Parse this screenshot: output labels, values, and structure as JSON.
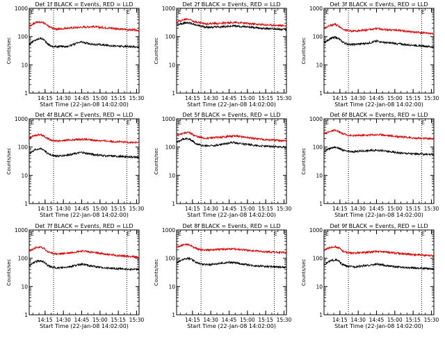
{
  "chart_data": [
    {
      "type": "line",
      "title": "Det 1f BLACK = Events, RED = LLD",
      "xlabel": "Start Time (22-Jan-08 14:02:00)",
      "ylabel": "Counts/sec",
      "xticks": [
        "14:15",
        "14:30",
        "14:45",
        "15:00",
        "15:15",
        "15:30"
      ],
      "yticks": [
        "1",
        "10",
        "100",
        "1000"
      ],
      "ylim": [
        1,
        1000
      ],
      "yscale": "log",
      "markers": [
        "E",
        "E"
      ],
      "series": [
        {
          "color": "#000000",
          "x": [
            0,
            5,
            9,
            12,
            15,
            19,
            23,
            27,
            30,
            35,
            39,
            43,
            47,
            52,
            57,
            62,
            67,
            72,
            77,
            82,
            87,
            90
          ],
          "y": [
            55,
            75,
            88,
            80,
            55,
            45,
            44,
            46,
            44,
            50,
            58,
            65,
            58,
            53,
            52,
            50,
            48,
            46,
            45,
            44,
            43,
            42
          ]
        },
        {
          "color": "#dd0000",
          "x": [
            0,
            5,
            9,
            12,
            15,
            19,
            23,
            27,
            30,
            35,
            39,
            43,
            47,
            52,
            57,
            62,
            67,
            72,
            77,
            82,
            87,
            90
          ],
          "y": [
            240,
            310,
            340,
            300,
            240,
            200,
            185,
            190,
            200,
            205,
            210,
            215,
            220,
            225,
            215,
            205,
            200,
            190,
            180,
            175,
            170,
            165
          ]
        }
      ]
    },
    {
      "type": "line",
      "title": "Det 2f BLACK = Events, RED = LLD",
      "xlabel": "Start Time (22-Jan-08 14:02:00)",
      "ylabel": "Counts/sec",
      "xticks": [
        "14:15",
        "14:30",
        "14:45",
        "15:00",
        "15:15",
        "15:30"
      ],
      "yticks": [
        "1",
        "10",
        "100",
        "1000"
      ],
      "ylim": [
        1,
        1000
      ],
      "yscale": "log",
      "markers": [
        "E",
        "E"
      ],
      "series": [
        {
          "color": "#000000",
          "x": [
            0,
            5,
            9,
            12,
            15,
            19,
            23,
            27,
            30,
            35,
            39,
            43,
            47,
            52,
            57,
            62,
            67,
            72,
            77,
            82,
            87,
            90
          ],
          "y": [
            250,
            290,
            310,
            290,
            260,
            240,
            220,
            215,
            220,
            220,
            225,
            230,
            240,
            230,
            220,
            210,
            200,
            195,
            190,
            185,
            180,
            175
          ]
        },
        {
          "color": "#dd0000",
          "x": [
            0,
            5,
            9,
            12,
            15,
            19,
            23,
            27,
            30,
            35,
            39,
            43,
            47,
            52,
            57,
            62,
            67,
            72,
            77,
            82,
            87,
            90
          ],
          "y": [
            330,
            390,
            420,
            390,
            340,
            310,
            290,
            285,
            290,
            295,
            300,
            305,
            320,
            310,
            295,
            280,
            270,
            260,
            255,
            250,
            245,
            240
          ]
        }
      ]
    },
    {
      "type": "line",
      "title": "Det 3f BLACK = Events, RED = LLD",
      "xlabel": "Start Time (22-Jan-08 14:02:00)",
      "ylabel": "Counts/sec",
      "xticks": [
        "14:15",
        "14:30",
        "14:45",
        "15:00",
        "15:15",
        "15:30"
      ],
      "yticks": [
        "1",
        "10",
        "100",
        "1000"
      ],
      "ylim": [
        1,
        1000
      ],
      "yscale": "log",
      "markers": [
        "E",
        "E"
      ],
      "series": [
        {
          "color": "#000000",
          "x": [
            0,
            5,
            9,
            12,
            15,
            19,
            23,
            27,
            30,
            35,
            39,
            43,
            47,
            52,
            57,
            62,
            67,
            72,
            77,
            82,
            87,
            90
          ],
          "y": [
            60,
            85,
            95,
            85,
            65,
            55,
            52,
            54,
            55,
            58,
            62,
            70,
            65,
            60,
            58,
            55,
            52,
            50,
            48,
            46,
            44,
            42
          ]
        },
        {
          "color": "#dd0000",
          "x": [
            0,
            5,
            9,
            12,
            15,
            19,
            23,
            27,
            30,
            35,
            39,
            43,
            47,
            52,
            57,
            62,
            67,
            72,
            77,
            82,
            87,
            90
          ],
          "y": [
            200,
            250,
            270,
            240,
            190,
            165,
            155,
            160,
            165,
            170,
            180,
            190,
            185,
            175,
            170,
            165,
            155,
            145,
            140,
            135,
            130,
            125
          ]
        }
      ]
    },
    {
      "type": "line",
      "title": "Det 4f BLACK = Events, RED = LLD",
      "xlabel": "Start Time (22-Jan-08 14:02:00)",
      "ylabel": "Counts/sec",
      "xticks": [
        "14:15",
        "14:30",
        "14:45",
        "15:00",
        "15:15",
        "15:30"
      ],
      "yticks": [
        "1",
        "10",
        "100",
        "1000"
      ],
      "ylim": [
        1,
        1000
      ],
      "yscale": "log",
      "markers": [
        "E",
        "E"
      ],
      "series": [
        {
          "color": "#000000",
          "x": [
            0,
            5,
            9,
            12,
            15,
            19,
            23,
            27,
            30,
            35,
            39,
            43,
            47,
            52,
            57,
            62,
            67,
            72,
            77,
            82,
            87,
            90
          ],
          "y": [
            60,
            80,
            90,
            80,
            60,
            52,
            48,
            50,
            52,
            55,
            60,
            65,
            60,
            55,
            52,
            50,
            48,
            47,
            46,
            45,
            44,
            43
          ]
        },
        {
          "color": "#dd0000",
          "x": [
            0,
            5,
            9,
            12,
            15,
            19,
            23,
            27,
            30,
            35,
            39,
            43,
            47,
            52,
            57,
            62,
            67,
            72,
            77,
            82,
            87,
            90
          ],
          "y": [
            210,
            260,
            280,
            250,
            200,
            175,
            165,
            170,
            175,
            180,
            185,
            190,
            185,
            175,
            170,
            165,
            160,
            155,
            150,
            148,
            145,
            142
          ]
        }
      ]
    },
    {
      "type": "line",
      "title": "Det 5f BLACK = Events, RED = LLD",
      "xlabel": "Start Time (22-Jan-08 14:02:00)",
      "ylabel": "Counts/sec",
      "xticks": [
        "14:15",
        "14:30",
        "14:45",
        "15:00",
        "15:15",
        "15:30"
      ],
      "yticks": [
        "1",
        "10",
        "100",
        "1000"
      ],
      "ylim": [
        1,
        1000
      ],
      "yscale": "log",
      "markers": [
        "E",
        "E"
      ],
      "series": [
        {
          "color": "#000000",
          "x": [
            0,
            5,
            9,
            12,
            15,
            19,
            23,
            27,
            30,
            35,
            39,
            43,
            47,
            52,
            57,
            62,
            67,
            72,
            77,
            82,
            87,
            90
          ],
          "y": [
            150,
            190,
            200,
            180,
            140,
            120,
            110,
            112,
            115,
            120,
            130,
            140,
            145,
            135,
            125,
            118,
            112,
            108,
            105,
            102,
            100,
            98
          ]
        },
        {
          "color": "#dd0000",
          "x": [
            0,
            5,
            9,
            12,
            15,
            19,
            23,
            27,
            30,
            35,
            39,
            43,
            47,
            52,
            57,
            62,
            67,
            72,
            77,
            82,
            87,
            90
          ],
          "y": [
            250,
            310,
            330,
            300,
            250,
            220,
            205,
            210,
            215,
            220,
            230,
            240,
            245,
            235,
            220,
            205,
            195,
            185,
            178,
            172,
            168,
            165
          ]
        }
      ]
    },
    {
      "type": "line",
      "title": "Det 6f BLACK = Events, RED = LLD",
      "xlabel": "Start Time (22-Jan-08 14:02:00)",
      "ylabel": "Counts/sec",
      "xticks": [
        "14:15",
        "14:30",
        "14:45",
        "15:00",
        "15:15",
        "15:30"
      ],
      "yticks": [
        "1",
        "10",
        "100",
        "1000"
      ],
      "ylim": [
        1,
        1000
      ],
      "yscale": "log",
      "markers": [
        "E",
        "E"
      ],
      "series": [
        {
          "color": "#000000",
          "x": [
            0,
            5,
            9,
            12,
            15,
            19,
            23,
            27,
            30,
            35,
            39,
            43,
            47,
            52,
            57,
            62,
            67,
            72,
            77,
            82,
            87,
            90
          ],
          "y": [
            70,
            90,
            100,
            92,
            78,
            70,
            68,
            70,
            72,
            74,
            76,
            78,
            75,
            70,
            66,
            62,
            60,
            58,
            57,
            56,
            55,
            55
          ]
        },
        {
          "color": "#dd0000",
          "x": [
            0,
            5,
            9,
            12,
            15,
            19,
            23,
            27,
            30,
            35,
            39,
            43,
            47,
            52,
            57,
            62,
            67,
            72,
            77,
            82,
            87,
            90
          ],
          "y": [
            290,
            360,
            390,
            350,
            300,
            270,
            255,
            258,
            262,
            266,
            270,
            275,
            272,
            260,
            245,
            232,
            222,
            212,
            206,
            202,
            200,
            198
          ]
        }
      ]
    },
    {
      "type": "line",
      "title": "Det 7f BLACK = Events, RED = LLD",
      "xlabel": "Start Time (22-Jan-08 14:02:00)",
      "ylabel": "Counts/sec",
      "xticks": [
        "14:15",
        "14:30",
        "14:45",
        "15:00",
        "15:15",
        "15:30"
      ],
      "yticks": [
        "1",
        "10",
        "100",
        "1000"
      ],
      "ylim": [
        1,
        1000
      ],
      "yscale": "log",
      "markers": [
        "E",
        "E"
      ],
      "series": [
        {
          "color": "#000000",
          "x": [
            0,
            5,
            9,
            12,
            15,
            19,
            23,
            27,
            30,
            35,
            39,
            43,
            47,
            52,
            57,
            62,
            67,
            72,
            77,
            82,
            87,
            90
          ],
          "y": [
            55,
            75,
            82,
            75,
            56,
            48,
            45,
            46,
            48,
            52,
            57,
            62,
            58,
            52,
            48,
            46,
            44,
            43,
            42,
            41,
            40,
            40
          ]
        },
        {
          "color": "#dd0000",
          "x": [
            0,
            5,
            9,
            12,
            15,
            19,
            23,
            27,
            30,
            35,
            39,
            43,
            47,
            52,
            57,
            62,
            67,
            72,
            77,
            82,
            87,
            90
          ],
          "y": [
            180,
            230,
            250,
            225,
            170,
            150,
            140,
            145,
            150,
            160,
            170,
            180,
            175,
            160,
            150,
            140,
            132,
            125,
            120,
            116,
            112,
            110
          ]
        }
      ]
    },
    {
      "type": "line",
      "title": "Det 8f BLACK = Events, RED = LLD",
      "xlabel": "Start Time (22-Jan-08 14:02:00)",
      "ylabel": "Counts/sec",
      "xticks": [
        "14:15",
        "14:30",
        "14:45",
        "15:00",
        "15:15",
        "15:30"
      ],
      "yticks": [
        "1",
        "10",
        "100",
        "1000"
      ],
      "ylim": [
        1,
        1000
      ],
      "yscale": "log",
      "markers": [
        "E",
        "E"
      ],
      "series": [
        {
          "color": "#000000",
          "x": [
            0,
            5,
            9,
            12,
            15,
            19,
            23,
            27,
            30,
            35,
            39,
            43,
            47,
            52,
            57,
            62,
            67,
            72,
            77,
            82,
            87,
            90
          ],
          "y": [
            70,
            90,
            100,
            92,
            75,
            65,
            60,
            60,
            62,
            65,
            68,
            72,
            70,
            65,
            60,
            56,
            54,
            52,
            50,
            49,
            48,
            47
          ]
        },
        {
          "color": "#dd0000",
          "x": [
            0,
            5,
            9,
            12,
            15,
            19,
            23,
            27,
            30,
            35,
            39,
            43,
            47,
            52,
            57,
            62,
            67,
            72,
            77,
            82,
            87,
            90
          ],
          "y": [
            240,
            290,
            310,
            280,
            230,
            205,
            195,
            198,
            202,
            206,
            210,
            215,
            212,
            205,
            195,
            185,
            178,
            170,
            165,
            162,
            160,
            158
          ]
        }
      ]
    },
    {
      "type": "line",
      "title": "Det 9f BLACK = Events, RED = LLD",
      "xlabel": "Start Time (22-Jan-08 14:02:00)",
      "ylabel": "Counts/sec",
      "xticks": [
        "14:15",
        "14:30",
        "14:45",
        "15:00",
        "15:15",
        "15:30"
      ],
      "yticks": [
        "1",
        "10",
        "100",
        "1000"
      ],
      "ylim": [
        1,
        1000
      ],
      "yscale": "log",
      "markers": [
        "E",
        "E"
      ],
      "series": [
        {
          "color": "#000000",
          "x": [
            0,
            5,
            9,
            12,
            15,
            19,
            23,
            27,
            30,
            35,
            39,
            43,
            47,
            52,
            57,
            62,
            67,
            72,
            77,
            82,
            87,
            90
          ],
          "y": [
            60,
            80,
            88,
            80,
            60,
            52,
            50,
            51,
            53,
            55,
            58,
            62,
            58,
            54,
            51,
            49,
            47,
            46,
            45,
            44,
            43,
            42
          ]
        },
        {
          "color": "#dd0000",
          "x": [
            0,
            5,
            9,
            12,
            15,
            19,
            23,
            27,
            30,
            35,
            39,
            43,
            47,
            52,
            57,
            62,
            67,
            72,
            77,
            82,
            87,
            90
          ],
          "y": [
            190,
            240,
            260,
            235,
            185,
            160,
            150,
            155,
            158,
            162,
            168,
            175,
            170,
            162,
            155,
            148,
            142,
            136,
            132,
            128,
            125,
            122
          ]
        }
      ]
    }
  ]
}
